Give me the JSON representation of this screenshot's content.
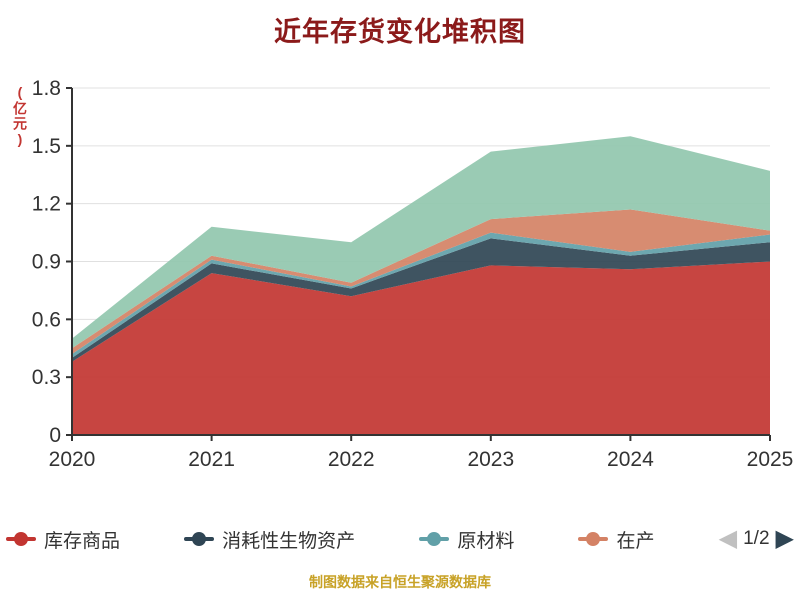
{
  "title": "近年存货变化堆积图",
  "y_axis_unit": "(亿元)",
  "footer": "制图数据来自恒生聚源数据库",
  "legend": {
    "page_indicator": "1/2",
    "items": [
      {
        "label": "库存商品",
        "color": "#c23531"
      },
      {
        "label": "消耗性生物资产",
        "color": "#2f4554"
      },
      {
        "label": "原材料",
        "color": "#61a0a8"
      },
      {
        "label": "在产",
        "color": "#d48265"
      }
    ]
  },
  "colors": {
    "title": "#8b1a1a",
    "y_axis_unit": "#c23531",
    "axis_line": "#333333",
    "axis_label": "#333333",
    "grid_line": "#e0e0e0",
    "footer": "#c8a227",
    "pager_prev": "#c0c0c0",
    "pager_next": "#2f4554"
  },
  "chart_data": {
    "type": "area",
    "stacked": true,
    "title": "近年存货变化堆积图",
    "ylabel": "(亿元)",
    "xlabel": "",
    "x": [
      2020,
      2021,
      2022,
      2023,
      2024,
      2025
    ],
    "ylim": [
      0,
      1.8
    ],
    "y_ticks": [
      0,
      0.3,
      0.6,
      0.9,
      1.2,
      1.5,
      1.8
    ],
    "grid": true,
    "legend_position": "bottom",
    "series": [
      {
        "name": "库存商品",
        "color": "#c23531",
        "values": [
          0.38,
          0.84,
          0.72,
          0.88,
          0.86,
          0.9
        ]
      },
      {
        "name": "消耗性生物资产",
        "color": "#2f4554",
        "values": [
          0.02,
          0.05,
          0.04,
          0.14,
          0.07,
          0.1
        ]
      },
      {
        "name": "原材料",
        "color": "#61a0a8",
        "values": [
          0.02,
          0.02,
          0.01,
          0.03,
          0.02,
          0.04
        ]
      },
      {
        "name": "在产",
        "color": "#d48265",
        "values": [
          0.03,
          0.02,
          0.02,
          0.07,
          0.22,
          0.02
        ]
      },
      {
        "name": "",
        "color": "#91c7ae",
        "values": [
          0.05,
          0.15,
          0.21,
          0.35,
          0.38,
          0.31
        ]
      }
    ]
  }
}
